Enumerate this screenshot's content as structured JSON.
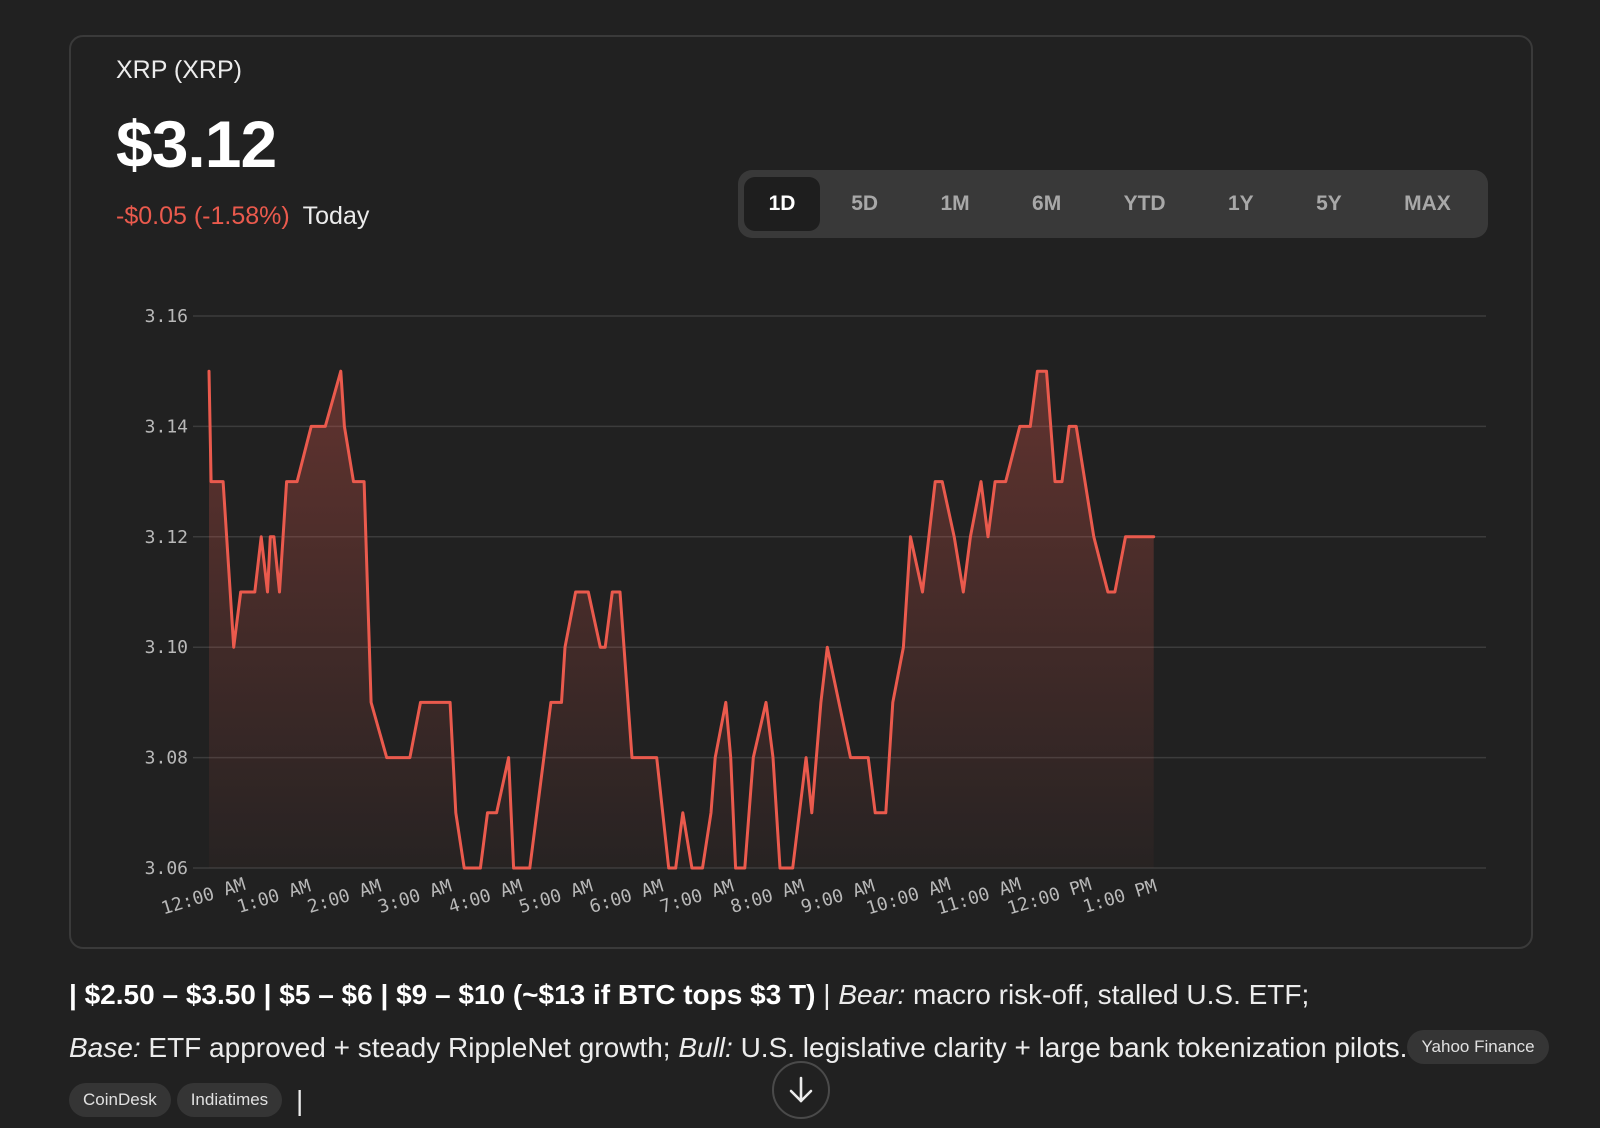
{
  "header": {
    "ticker": "XRP (XRP)",
    "price": "$3.12",
    "change": "-$0.05 (-1.58%)",
    "period": "Today"
  },
  "range_tabs": [
    "1D",
    "5D",
    "1M",
    "6M",
    "YTD",
    "1Y",
    "5Y",
    "MAX"
  ],
  "active_range": "1D",
  "colors": {
    "line": "#ea5a4d",
    "grid": "#3c3c3c",
    "background": "#212121",
    "negative": "#ea5a4d"
  },
  "chart_data": {
    "type": "area",
    "title": "",
    "xlabel": "",
    "ylabel": "",
    "ylim": [
      3.06,
      3.16
    ],
    "yticks": [
      "3.16",
      "3.14",
      "3.12",
      "3.10",
      "3.08",
      "3.06"
    ],
    "xticks": [
      "12:00 AM",
      "1:00 AM",
      "2:00 AM",
      "3:00 AM",
      "4:00 AM",
      "5:00 AM",
      "6:00 AM",
      "7:00 AM",
      "8:00 AM",
      "9:00 AM",
      "10:00 AM",
      "11:00 AM",
      "12:00 PM",
      "1:00 PM"
    ],
    "grid": true,
    "legend": "none",
    "series": [
      {
        "x": [
          0,
          0.03,
          0.2,
          0.3,
          0.35,
          0.45,
          0.52,
          0.65,
          0.74,
          0.83,
          0.87,
          0.92,
          1.0,
          1.1,
          1.25,
          1.45,
          1.65,
          1.87,
          1.92,
          2.05,
          2.2,
          2.3,
          2.52,
          2.65,
          2.85,
          3.0,
          3.15,
          3.42,
          3.5,
          3.62,
          3.85,
          3.95,
          4.08,
          4.25,
          4.32,
          4.48,
          4.55,
          4.85,
          5.0,
          5.05,
          5.2,
          5.38,
          5.55,
          5.62,
          5.72,
          5.83,
          6.0,
          6.35,
          6.52,
          6.62,
          6.72,
          6.85,
          6.97,
          7.0,
          7.12,
          7.18,
          7.33,
          7.4,
          7.47,
          7.53,
          7.6,
          7.72,
          7.9,
          8.0,
          8.1,
          8.15,
          8.22,
          8.28,
          8.47,
          8.55,
          8.68,
          8.77,
          9.1,
          9.18,
          9.35,
          9.45,
          9.6,
          9.7,
          9.85,
          9.95,
          10.12,
          10.3,
          10.4,
          10.57,
          10.7,
          10.8,
          10.95,
          11.05,
          11.15,
          11.3,
          11.5,
          11.65,
          11.75,
          11.88,
          12.0,
          12.1,
          12.2,
          12.3,
          12.55,
          12.75,
          12.85,
          13.0,
          13.4
        ],
        "values": [
          3.15,
          3.13,
          3.13,
          3.11,
          3.1,
          3.11,
          3.11,
          3.11,
          3.12,
          3.11,
          3.12,
          3.12,
          3.11,
          3.13,
          3.13,
          3.14,
          3.14,
          3.15,
          3.14,
          3.13,
          3.13,
          3.09,
          3.08,
          3.08,
          3.08,
          3.09,
          3.09,
          3.09,
          3.07,
          3.06,
          3.06,
          3.07,
          3.07,
          3.08,
          3.06,
          3.06,
          3.06,
          3.09,
          3.09,
          3.1,
          3.11,
          3.11,
          3.1,
          3.1,
          3.11,
          3.11,
          3.08,
          3.08,
          3.06,
          3.06,
          3.07,
          3.06,
          3.06,
          3.06,
          3.07,
          3.08,
          3.09,
          3.08,
          3.06,
          3.06,
          3.06,
          3.08,
          3.09,
          3.08,
          3.06,
          3.06,
          3.06,
          3.06,
          3.08,
          3.07,
          3.09,
          3.1,
          3.08,
          3.08,
          3.08,
          3.07,
          3.07,
          3.09,
          3.1,
          3.12,
          3.11,
          3.13,
          3.13,
          3.12,
          3.11,
          3.12,
          3.13,
          3.12,
          3.13,
          3.13,
          3.14,
          3.14,
          3.15,
          3.15,
          3.13,
          3.13,
          3.14,
          3.14,
          3.12,
          3.11,
          3.11,
          3.12,
          3.12
        ]
      }
    ]
  },
  "summary": {
    "bold_line": "| $2.50 – $3.50 | $5 – $6 | $9 – $10 (~$13 if BTC tops $3 T)",
    "sep1": " | ",
    "bear_label": "Bear:",
    "bear_text": " macro risk-off, stalled U.S. ETF;",
    "base_label": "Base:",
    "base_text": " ETF approved + steady RippleNet growth; ",
    "bull_label": "Bull:",
    "bull_text": " U.S. legislative clarity + large bank tokenization pilots.",
    "sources": [
      "Yahoo Finance",
      "CoinDesk",
      "Indiatimes"
    ],
    "end": " |"
  }
}
